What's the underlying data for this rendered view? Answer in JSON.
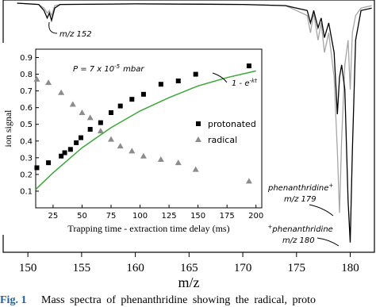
{
  "chart_data": [
    {
      "type": "line",
      "x_label": "m/z",
      "xlim": [
        147.7,
        182.25
      ],
      "xticks": [
        150,
        155,
        160,
        165,
        170,
        175,
        180
      ],
      "ylim": [
        0,
        100
      ],
      "y_inverted": true,
      "series": [
        {
          "color": "#a6a6a6",
          "x": [
            149,
            151,
            151.5,
            151.8,
            152,
            152.2,
            152.5,
            153,
            160,
            170,
            174,
            175,
            176,
            176.3,
            176.6,
            177,
            177.3,
            177.6,
            178,
            178.5,
            178.8,
            179,
            179.2,
            179.5,
            179.8,
            180,
            180.2,
            180.5,
            181,
            182
          ],
          "values": [
            0,
            0.5,
            2,
            4,
            3,
            5,
            1,
            0.5,
            0.3,
            0.5,
            1,
            3,
            5,
            12,
            4,
            15,
            8,
            20,
            12,
            30,
            60,
            85,
            55,
            25,
            15,
            35,
            12,
            5,
            2,
            1
          ]
        },
        {
          "color": "#000000",
          "x": [
            149,
            151,
            151.5,
            151.8,
            152,
            152.2,
            152.5,
            153,
            160,
            170,
            174,
            175,
            176,
            176.3,
            176.6,
            177,
            177.3,
            177.6,
            178,
            178.5,
            178.8,
            179,
            179.2,
            179.5,
            179.8,
            180,
            180.2,
            180.5,
            181,
            182
          ],
          "values": [
            0,
            0.5,
            3,
            6,
            4,
            7,
            2,
            0.5,
            0.3,
            0.5,
            1,
            2,
            3,
            8,
            3,
            10,
            6,
            14,
            8,
            20,
            45,
            30,
            25,
            35,
            80,
            97,
            60,
            15,
            3,
            2
          ]
        }
      ],
      "annotations": [
        "m/z 152",
        "phenanthridine",
        "+",
        "m/z 179",
        "H",
        "+",
        "phenanthridine",
        "m/z 180"
      ]
    },
    {
      "type": "scatter",
      "x_label": "Trapping time - extraction time delay (ms)",
      "y_label": "ion signal",
      "xlim": [
        10,
        205
      ],
      "ylim": [
        0,
        0.95
      ],
      "xticks": [
        25,
        50,
        75,
        100,
        125,
        150,
        175,
        200
      ],
      "yticks": [
        0.1,
        0.2,
        0.3,
        0.4,
        0.5,
        0.6,
        0.7,
        0.8,
        0.9
      ],
      "legend": "right",
      "series": [
        {
          "name": "protonated",
          "color": "#000000",
          "marker": "square",
          "x": [
            11,
            21,
            32,
            35,
            40,
            45,
            49,
            57,
            66,
            75,
            83,
            93,
            103,
            118,
            133,
            148,
            194
          ],
          "values": [
            0.24,
            0.27,
            0.31,
            0.33,
            0.35,
            0.39,
            0.42,
            0.47,
            0.51,
            0.57,
            0.61,
            0.65,
            0.68,
            0.74,
            0.76,
            0.8,
            0.85
          ]
        },
        {
          "name": "radical",
          "color": "#8c8c8c",
          "marker": "triangle",
          "x": [
            11,
            21,
            32,
            42,
            50,
            57,
            66,
            75,
            83,
            93,
            103,
            118,
            133,
            148,
            194
          ],
          "values": [
            0.77,
            0.75,
            0.69,
            0.62,
            0.57,
            0.54,
            0.46,
            0.41,
            0.37,
            0.34,
            0.31,
            0.29,
            0.27,
            0.23,
            0.16
          ]
        },
        {
          "color": "#3aa935",
          "marker": "none",
          "x": [
            10,
            25,
            50,
            75,
            100,
            125,
            150,
            175,
            200
          ],
          "values": [
            0.11,
            0.21,
            0.36,
            0.48,
            0.58,
            0.66,
            0.73,
            0.78,
            0.82
          ]
        }
      ],
      "annotations": [
        "P = 7 x 10",
        "-5",
        "mbar",
        "1 - e",
        "-kt"
      ]
    }
  ],
  "caption": {
    "label": "Fig. 1",
    "text": "Mass spectra of phenanthridine showing the radical, proto"
  }
}
